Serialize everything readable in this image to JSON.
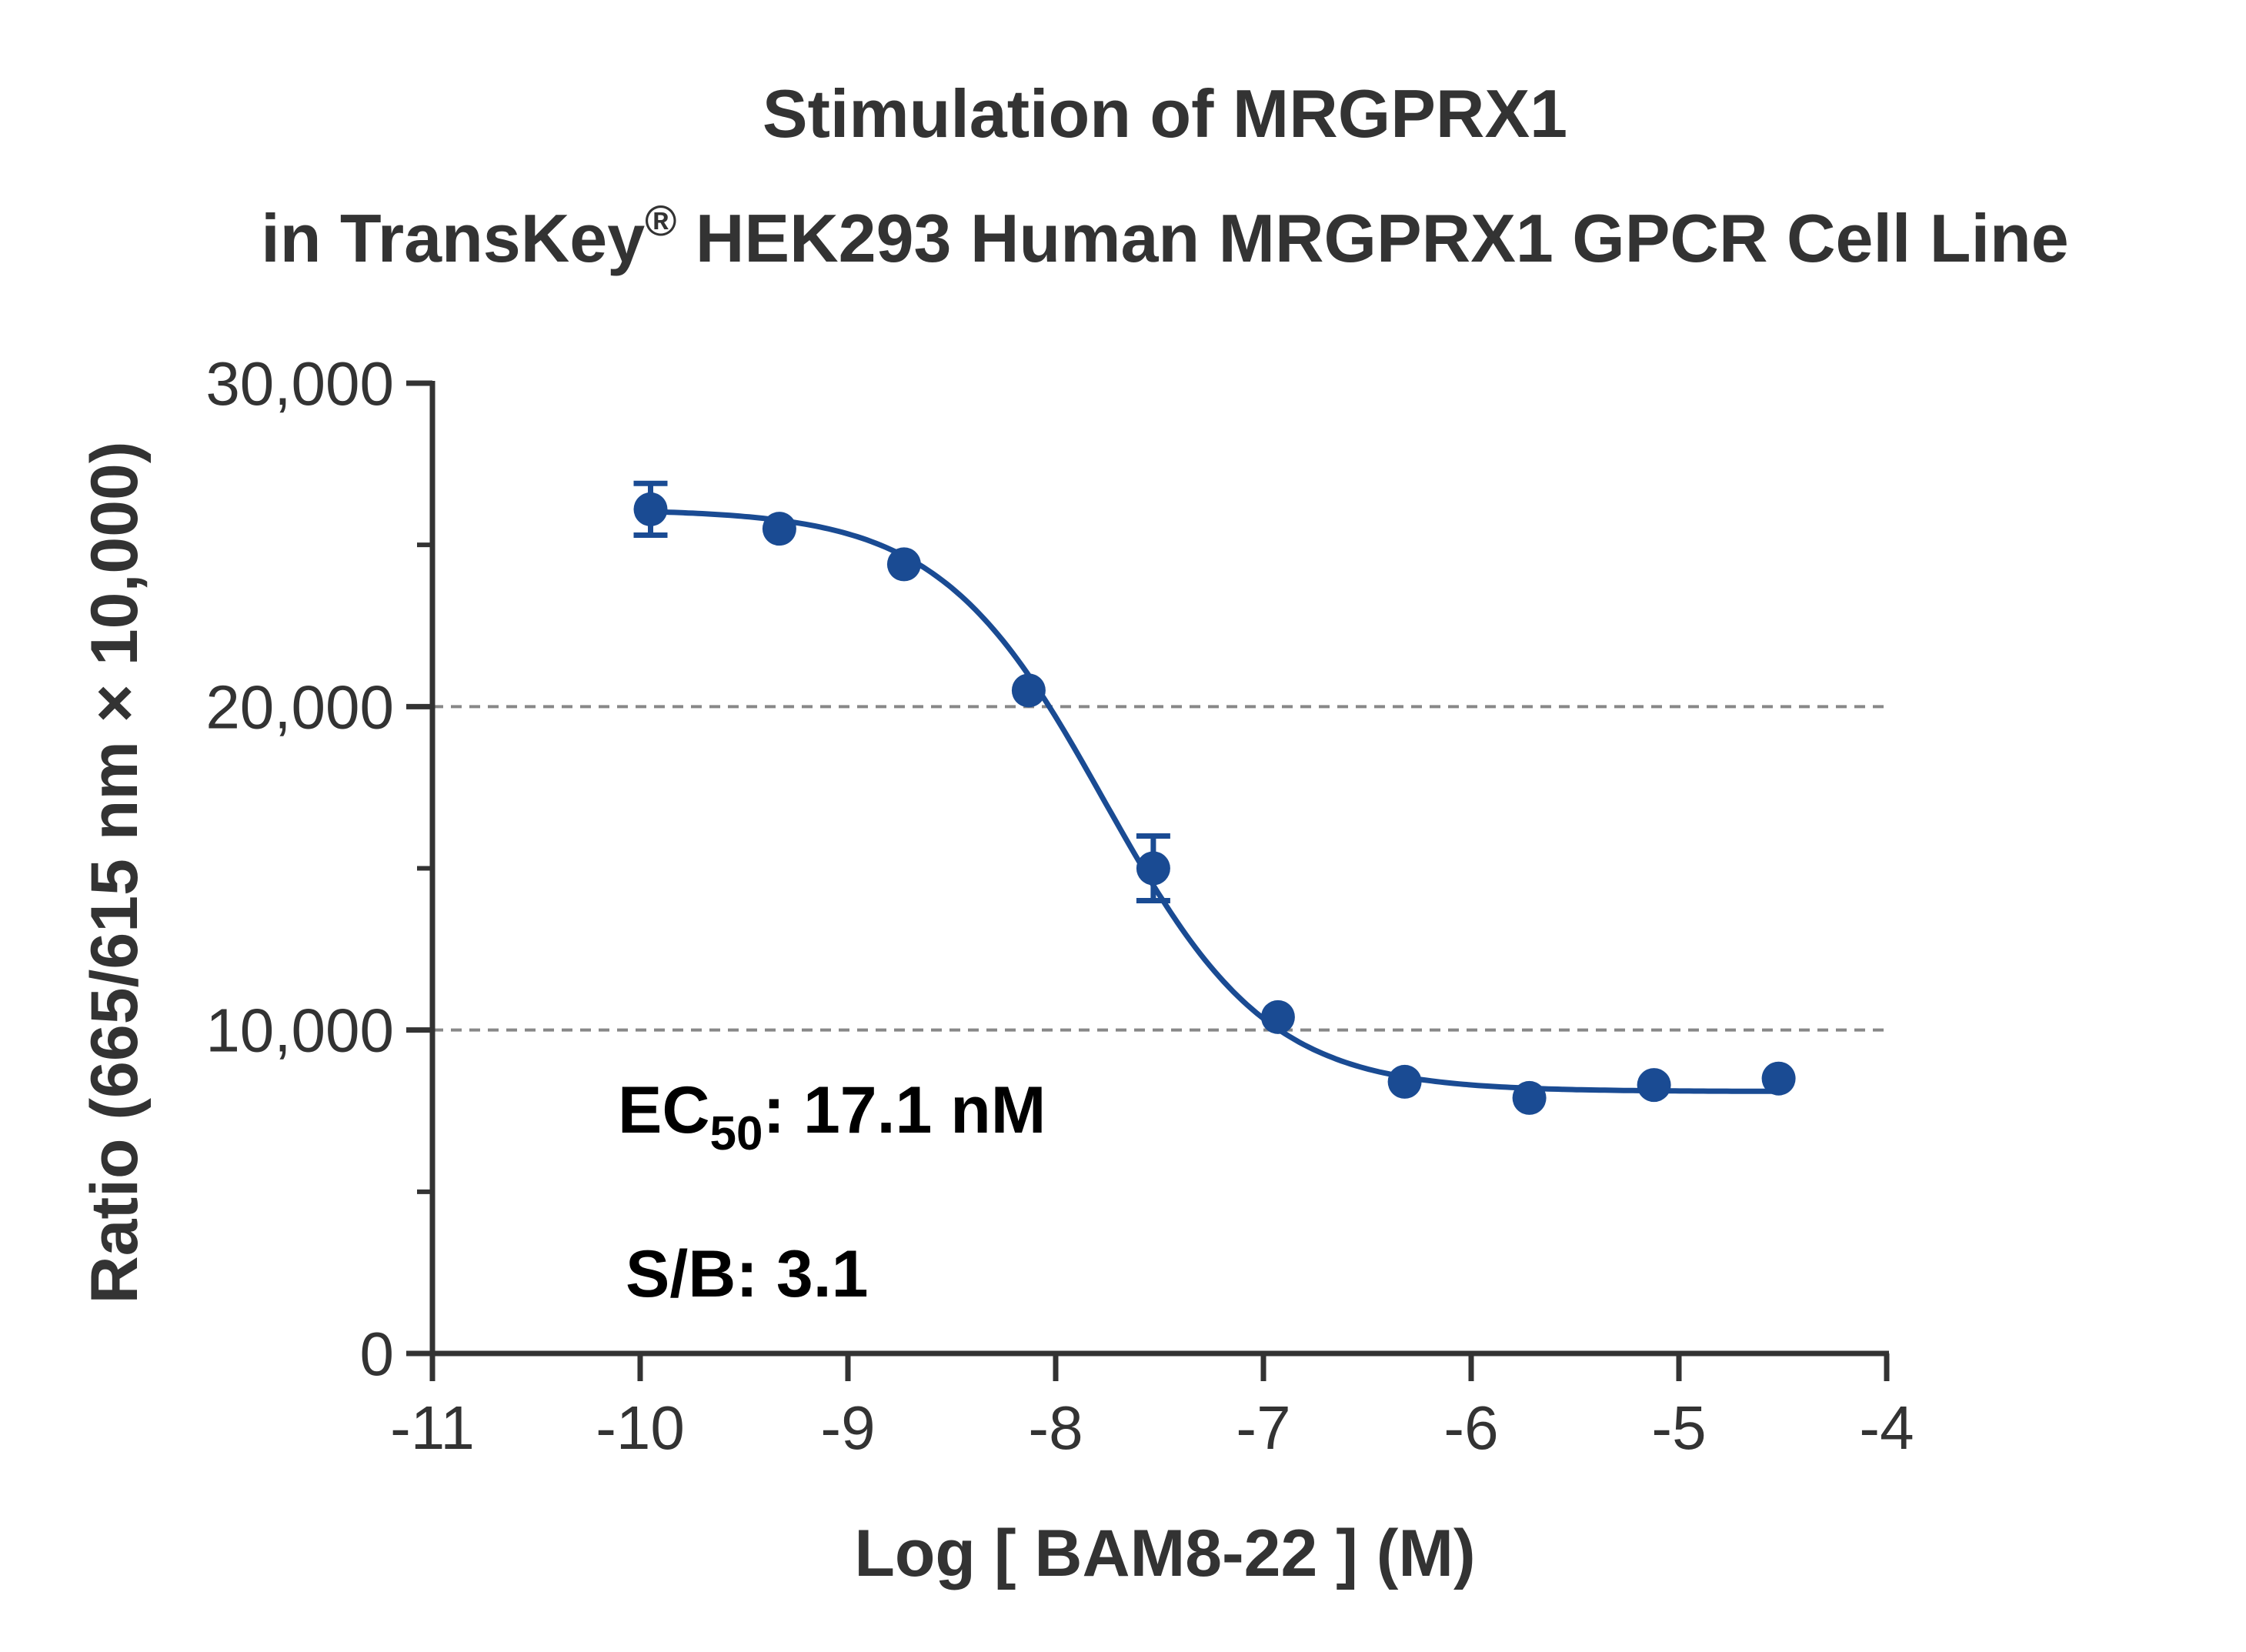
{
  "chart_data": {
    "type": "scatter",
    "title_line1": "Stimulation of  MRGPRX1",
    "title_line2_pre": "in TransKey",
    "title_line2_sup": "®",
    "title_line2_post": " HEK293 Human MRGPRX1 GPCR Cell Line",
    "xlabel": "Log [ BAM8-22 ]  (M)",
    "ylabel": "Ratio (665/615 nm × 10,000)",
    "xlim": [
      -11,
      -4
    ],
    "ylim": [
      0,
      30000
    ],
    "x_ticks": [
      -11,
      -10,
      -9,
      -8,
      -7,
      -6,
      -5,
      -4
    ],
    "x_tick_labels": [
      "-11",
      "-10",
      "-9",
      "-8",
      "-7",
      "-6",
      "-5",
      "-4"
    ],
    "y_ticks": [
      0,
      10000,
      20000,
      30000
    ],
    "y_tick_labels": [
      "0",
      "10,000",
      "20,000",
      "30,000"
    ],
    "y_minor_ticks": [
      5000,
      15000,
      25000
    ],
    "gridlines_y": [
      10000,
      20000
    ],
    "colors": {
      "series": "#1a4b93",
      "axis": "#333333",
      "grid": "#888888"
    },
    "series": [
      {
        "x": [
          -9.95,
          -9.33,
          -8.73,
          -8.13,
          -7.53,
          -6.93,
          -6.32,
          -5.72,
          -5.12,
          -4.52
        ],
        "y": [
          26100,
          25500,
          24400,
          20500,
          15000,
          10400,
          8400,
          7900,
          8300,
          8500
        ],
        "error": [
          800,
          0,
          0,
          0,
          1000,
          0,
          0,
          0,
          0,
          0
        ]
      }
    ],
    "fit": {
      "top": 26100,
      "bottom": 8100,
      "log_ec50": -7.767,
      "hill_slope": 1.1
    },
    "annotations": {
      "ec50_prefix": "EC",
      "ec50_sub": "50",
      "ec50_value": ": 17.1 nM",
      "sb": "S/B: 3.1"
    }
  }
}
